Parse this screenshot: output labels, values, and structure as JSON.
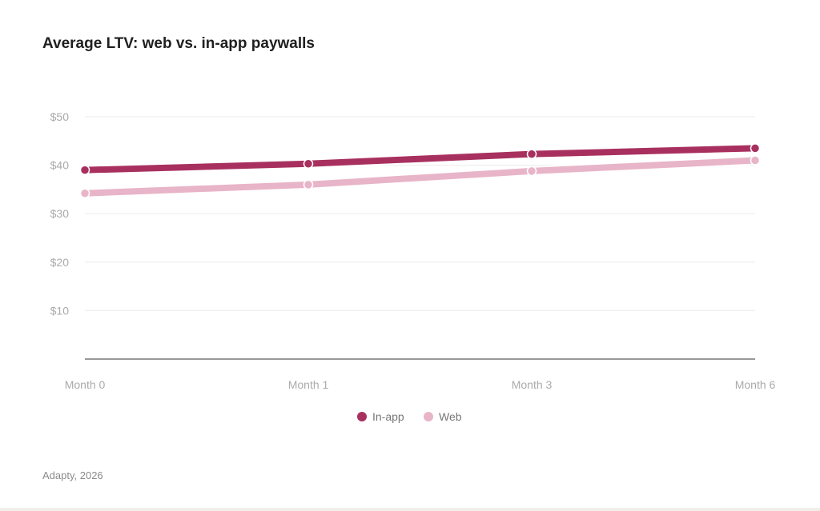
{
  "chart_data": {
    "type": "line",
    "title": "Average LTV: web vs. in-app paywalls",
    "categories": [
      "Month 0",
      "Month 1",
      "Month 3",
      "Month 6"
    ],
    "y_ticks": [
      "$10",
      "$20",
      "$30",
      "$40",
      "$50"
    ],
    "y_tick_values": [
      10,
      20,
      30,
      40,
      50
    ],
    "ylim": [
      0,
      50
    ],
    "grid": true,
    "legend_placement": "bottom",
    "series": [
      {
        "name": "In-app",
        "color": "#a8305f",
        "values": [
          39.0,
          40.3,
          42.3,
          43.5
        ]
      },
      {
        "name": "Web",
        "color": "#e8b4c8",
        "values": [
          34.2,
          36.0,
          38.8,
          41.0
        ]
      }
    ],
    "source": "Adapty, 2026"
  }
}
